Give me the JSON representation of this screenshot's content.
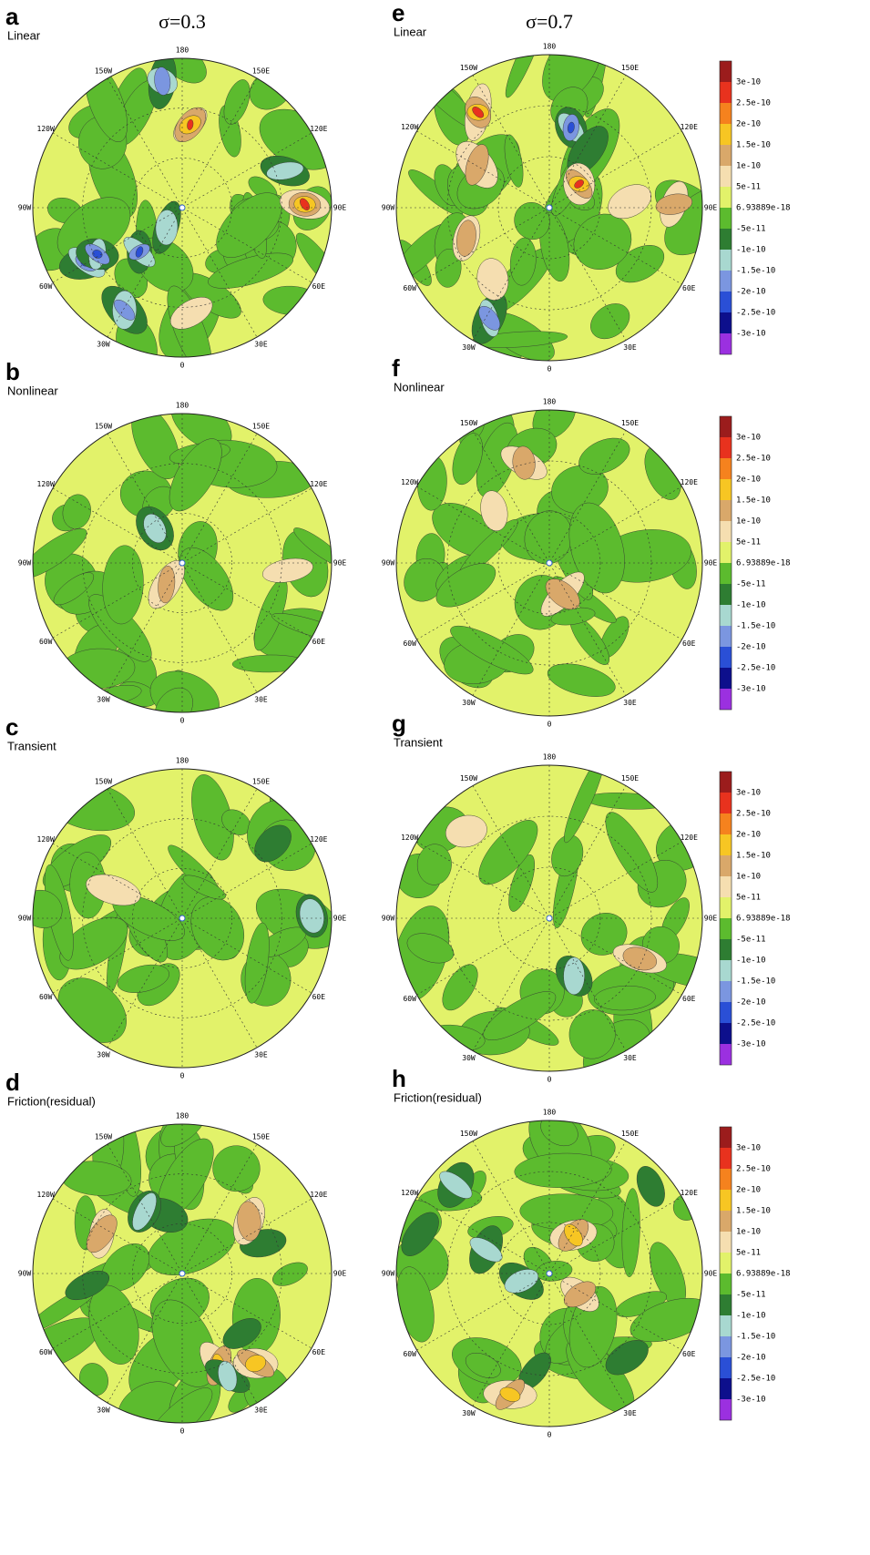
{
  "columns": [
    {
      "heading": "σ=0.3",
      "panels": [
        {
          "letter": "a",
          "title": "Linear"
        },
        {
          "letter": "b",
          "title": "Nonlinear"
        },
        {
          "letter": "c",
          "title": "Transient"
        },
        {
          "letter": "d",
          "title": "Friction(residual)"
        }
      ]
    },
    {
      "heading": "σ=0.7",
      "panels": [
        {
          "letter": "e",
          "title": "Linear"
        },
        {
          "letter": "f",
          "title": "Nonlinear"
        },
        {
          "letter": "g",
          "title": "Transient"
        },
        {
          "letter": "h",
          "title": "Friction(residual)"
        }
      ]
    }
  ],
  "longitude_labels": [
    "180",
    "150E",
    "120E",
    "90E",
    "60E",
    "30E",
    "0",
    "30W",
    "60W",
    "90W",
    "120W",
    "150W"
  ],
  "colorbar": {
    "labels": [
      "3e-10",
      "2.5e-10",
      "2e-10",
      "1.5e-10",
      "1e-10",
      "5e-11",
      "6.93889e-18",
      "-5e-11",
      "-1e-10",
      "-1.5e-10",
      "-2e-10",
      "-2.5e-10",
      "-3e-10"
    ],
    "colors": [
      "#9b1c1c",
      "#e8321e",
      "#f5821e",
      "#f7c623",
      "#d9a86a",
      "#f5deb0",
      "#e2f26a",
      "#5cbb2e",
      "#2e7d32",
      "#a8d8d0",
      "#7b96e0",
      "#2a4fd6",
      "#0d0f8c",
      "#9b30e0"
    ]
  }
}
